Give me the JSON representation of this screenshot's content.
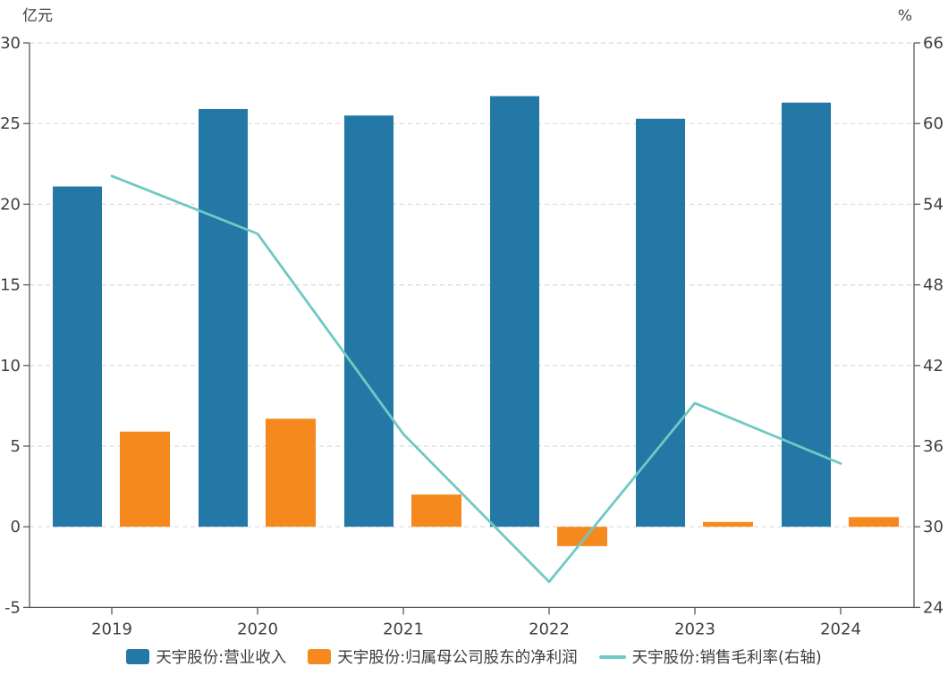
{
  "chart_data": {
    "type": "combo",
    "title": "",
    "categories": [
      "2019",
      "2020",
      "2021",
      "2022",
      "2023",
      "2024"
    ],
    "series": [
      {
        "name": "天宇股份:营业收入",
        "type": "bar",
        "axis": "left",
        "color": "#2478A6",
        "values": [
          21.1,
          25.9,
          25.5,
          26.7,
          25.3,
          26.3
        ]
      },
      {
        "name": "天宇股份:归属母公司股东的净利润",
        "type": "bar",
        "axis": "left",
        "color": "#F6891E",
        "values": [
          5.9,
          6.7,
          2.0,
          -1.2,
          0.3,
          0.6
        ]
      },
      {
        "name": "天宇股份:销售毛利率(右轴)",
        "type": "line",
        "axis": "right",
        "color": "#6FC9C3",
        "values": [
          56.1,
          51.8,
          36.9,
          25.9,
          39.2,
          34.7
        ]
      }
    ],
    "left_axis": {
      "unit": "亿元",
      "min": -5,
      "max": 30,
      "ticks": [
        30,
        25,
        20,
        15,
        10,
        5,
        0,
        -5
      ]
    },
    "right_axis": {
      "unit": "%",
      "min": 24,
      "max": 66,
      "ticks": [
        66,
        60,
        54,
        48,
        42,
        36,
        30,
        24
      ]
    },
    "grid": true,
    "legend_position": "bottom",
    "colors": {
      "grid": "#DADADA",
      "axis": "#58595B",
      "tick_text": "#404040"
    }
  }
}
